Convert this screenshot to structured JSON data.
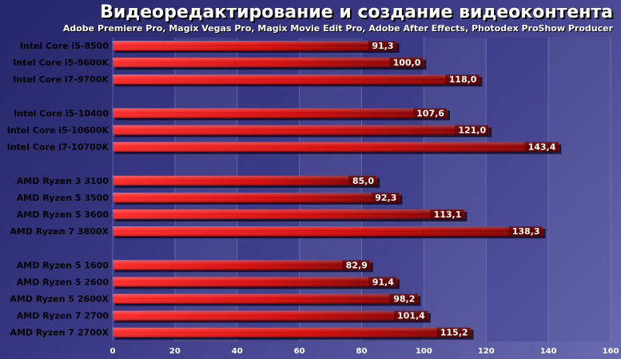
{
  "chart_data": {
    "type": "bar",
    "orientation": "horizontal",
    "title": "Видеоредактирование и создание видеоконтента",
    "subtitle": "Adobe Premiere Pro, Magix Vegas Pro, Magix Movie Edit Pro, Adobe After Effects, Photodex ProShow Producer",
    "xlim": [
      0,
      160
    ],
    "xticks": [
      "0",
      "20",
      "40",
      "60",
      "80",
      "100",
      "120",
      "140",
      "160"
    ],
    "grid": true,
    "groups": [
      {
        "categories": [
          "Intel Core i5-8500",
          "Intel Core i5-9600K",
          "Intel Core i7-9700K"
        ],
        "values": [
          91.3,
          100.0,
          118.0
        ],
        "labels": [
          "91,3",
          "100,0",
          "118,0"
        ]
      },
      {
        "categories": [
          "Intel Core i5-10400",
          "Intel Core i5-10600K",
          "Intel Core i7-10700K"
        ],
        "values": [
          107.6,
          121.0,
          143.4
        ],
        "labels": [
          "107,6",
          "121,0",
          "143,4"
        ]
      },
      {
        "categories": [
          "AMD Ryzen 3 3100",
          "AMD Ryzen 5 3500",
          "AMD Ryzen 5 3600",
          "AMD Ryzen 7 3800X"
        ],
        "values": [
          85.0,
          92.3,
          113.1,
          138.3
        ],
        "labels": [
          "85,0",
          "92,3",
          "113,1",
          "138,3"
        ]
      },
      {
        "categories": [
          "AMD Ryzen 5 1600",
          "AMD Ryzen 5 2600",
          "AMD Ryzen 5 2600X",
          "AMD Ryzen 7 2700",
          "AMD Ryzen 7 2700X"
        ],
        "values": [
          82.9,
          91.4,
          98.2,
          101.4,
          115.2
        ],
        "labels": [
          "82,9",
          "91,4",
          "98,2",
          "101,4",
          "115,2"
        ]
      }
    ]
  },
  "colors": {
    "bar_start": "#ff2a2a",
    "bar_end": "#7a0000",
    "bar_shadow": "#0a0a20",
    "label_box": "#4a0000",
    "label_text": "#ffffff",
    "category_text": "#000000",
    "tick_text": "#ffffff"
  }
}
